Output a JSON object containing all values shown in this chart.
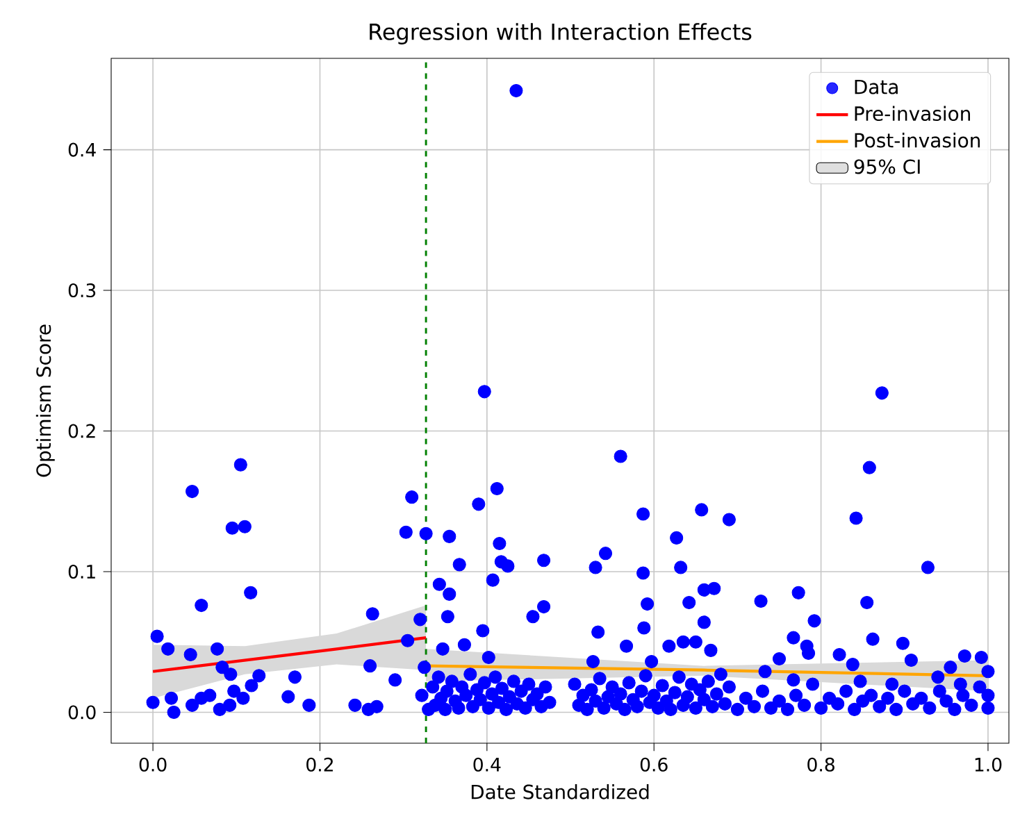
{
  "chart_data": {
    "type": "scatter",
    "title": "Regression with Interaction Effects",
    "xlabel": "Date Standardized",
    "ylabel": "Optimism Score",
    "xlim": [
      -0.05,
      1.025
    ],
    "ylim": [
      -0.022,
      0.465
    ],
    "xticks": [
      {
        "value": 0,
        "label": "0.0"
      },
      0.2,
      0.4,
      0.6,
      0.8,
      {
        "value": 1,
        "label": "1.0"
      }
    ],
    "yticks": [
      {
        "value": 0,
        "label": "0.0"
      },
      0.1,
      0.2,
      0.3,
      0.4
    ],
    "grid": true,
    "legend": "top right",
    "ref_lines": [
      {
        "axis": "x",
        "value": 0.327,
        "color": "#008000",
        "line_style": "dashed"
      }
    ],
    "series": [
      {
        "name": "Data",
        "type": "scatter",
        "marker": "circle",
        "color": "#0000ff",
        "x": [
          0.435,
          0.047,
          0.105,
          0.095,
          0.11,
          0.117,
          0.058,
          0.005,
          0.018,
          0.045,
          0.077,
          0.083,
          0.093,
          0.127,
          0.17,
          0.162,
          0.187,
          0.0,
          0.022,
          0.025,
          0.047,
          0.058,
          0.08,
          0.092,
          0.108,
          0.118,
          0.097,
          0.068,
          0.242,
          0.258,
          0.268,
          0.26,
          0.263,
          0.29,
          0.31,
          0.303,
          0.327,
          0.305,
          0.32,
          0.325,
          0.322,
          0.33,
          0.397,
          0.56,
          0.412,
          0.39,
          0.355,
          0.415,
          0.367,
          0.417,
          0.425,
          0.468,
          0.53,
          0.542,
          0.587,
          0.587,
          0.592,
          0.588,
          0.627,
          0.632,
          0.657,
          0.66,
          0.672,
          0.642,
          0.66,
          0.618,
          0.635,
          0.65,
          0.668,
          0.567,
          0.533,
          0.455,
          0.468,
          0.407,
          0.343,
          0.355,
          0.353,
          0.395,
          0.347,
          0.373,
          0.402,
          0.527,
          0.597,
          0.873,
          0.858,
          0.842,
          0.928,
          0.69,
          0.728,
          0.773,
          0.855,
          0.792,
          0.767,
          0.783,
          0.785,
          0.862,
          0.898,
          0.75,
          0.822,
          0.838,
          0.733,
          0.767,
          0.972,
          0.992,
          1.0,
          0.955,
          0.908,
          0.967,
          0.942,
          0.885,
          0.847,
          0.335,
          0.338,
          0.342,
          0.345,
          0.35,
          0.352,
          0.358,
          0.362,
          0.366,
          0.37,
          0.375,
          0.38,
          0.383,
          0.388,
          0.392,
          0.397,
          0.402,
          0.406,
          0.41,
          0.414,
          0.418,
          0.423,
          0.427,
          0.432,
          0.436,
          0.441,
          0.446,
          0.45,
          0.455,
          0.46,
          0.465,
          0.47,
          0.475,
          0.505,
          0.51,
          0.515,
          0.52,
          0.525,
          0.53,
          0.535,
          0.54,
          0.545,
          0.55,
          0.555,
          0.56,
          0.565,
          0.57,
          0.575,
          0.58,
          0.585,
          0.59,
          0.595,
          0.6,
          0.605,
          0.61,
          0.615,
          0.62,
          0.625,
          0.63,
          0.635,
          0.64,
          0.645,
          0.65,
          0.655,
          0.66,
          0.665,
          0.67,
          0.675,
          0.68,
          0.685,
          0.69,
          0.7,
          0.71,
          0.72,
          0.73,
          0.74,
          0.75,
          0.76,
          0.77,
          0.78,
          0.79,
          0.8,
          0.81,
          0.82,
          0.83,
          0.84,
          0.85,
          0.86,
          0.87,
          0.88,
          0.89,
          0.9,
          0.91,
          0.92,
          0.93,
          0.94,
          0.95,
          0.96,
          0.97,
          0.98,
          0.99,
          1.0,
          1.0
        ],
        "values": [
          0.442,
          0.157,
          0.176,
          0.131,
          0.132,
          0.085,
          0.076,
          0.054,
          0.045,
          0.041,
          0.045,
          0.032,
          0.027,
          0.026,
          0.025,
          0.011,
          0.005,
          0.007,
          0.01,
          0.0,
          0.005,
          0.01,
          0.002,
          0.005,
          0.01,
          0.019,
          0.015,
          0.012,
          0.005,
          0.002,
          0.004,
          0.033,
          0.07,
          0.023,
          0.153,
          0.128,
          0.127,
          0.051,
          0.066,
          0.032,
          0.012,
          0.002,
          0.228,
          0.182,
          0.159,
          0.148,
          0.125,
          0.12,
          0.105,
          0.107,
          0.104,
          0.108,
          0.103,
          0.113,
          0.141,
          0.099,
          0.077,
          0.06,
          0.124,
          0.103,
          0.144,
          0.087,
          0.088,
          0.078,
          0.064,
          0.047,
          0.05,
          0.05,
          0.044,
          0.047,
          0.057,
          0.068,
          0.075,
          0.094,
          0.091,
          0.084,
          0.068,
          0.058,
          0.045,
          0.048,
          0.039,
          0.036,
          0.036,
          0.227,
          0.174,
          0.138,
          0.103,
          0.137,
          0.079,
          0.085,
          0.078,
          0.065,
          0.053,
          0.047,
          0.042,
          0.052,
          0.049,
          0.038,
          0.041,
          0.034,
          0.029,
          0.023,
          0.04,
          0.039,
          0.029,
          0.032,
          0.037,
          0.02,
          0.015,
          0.02,
          0.022,
          0.018,
          0.005,
          0.025,
          0.01,
          0.002,
          0.015,
          0.022,
          0.008,
          0.003,
          0.018,
          0.012,
          0.027,
          0.004,
          0.016,
          0.009,
          0.021,
          0.003,
          0.013,
          0.025,
          0.007,
          0.017,
          0.002,
          0.011,
          0.022,
          0.006,
          0.015,
          0.003,
          0.02,
          0.009,
          0.013,
          0.004,
          0.018,
          0.007,
          0.02,
          0.005,
          0.012,
          0.002,
          0.016,
          0.008,
          0.024,
          0.003,
          0.011,
          0.018,
          0.006,
          0.013,
          0.002,
          0.021,
          0.009,
          0.004,
          0.015,
          0.026,
          0.007,
          0.012,
          0.003,
          0.019,
          0.008,
          0.002,
          0.014,
          0.025,
          0.005,
          0.011,
          0.02,
          0.003,
          0.016,
          0.009,
          0.022,
          0.004,
          0.013,
          0.027,
          0.006,
          0.018,
          0.002,
          0.01,
          0.004,
          0.015,
          0.003,
          0.008,
          0.002,
          0.012,
          0.005,
          0.02,
          0.003,
          0.01,
          0.006,
          0.015,
          0.002,
          0.008,
          0.012,
          0.004,
          0.01,
          0.002,
          0.015,
          0.006,
          0.01,
          0.003,
          0.025,
          0.008,
          0.002,
          0.012,
          0.005,
          0.018,
          0.003,
          0.012
        ]
      },
      {
        "name": "Pre-invasion",
        "type": "line",
        "marker": "none",
        "color": "#ff0000",
        "x": [
          0,
          0.11,
          0.22,
          0.327
        ],
        "values": [
          0.029,
          0.037,
          0.045,
          0.053
        ],
        "lower": [
          0.01,
          0.027,
          0.034,
          0.03
        ],
        "upper": [
          0.048,
          0.047,
          0.056,
          0.076
        ]
      },
      {
        "name": "Post-invasion",
        "type": "line",
        "marker": "none",
        "color": "#ffa500",
        "x": [
          0.327,
          0.66,
          1.0
        ],
        "values": [
          0.033,
          0.03,
          0.026
        ],
        "lower": [
          0.022,
          0.026,
          0.015
        ],
        "upper": [
          0.045,
          0.033,
          0.037
        ]
      },
      {
        "name": "95% CI",
        "type": "area",
        "color": "#d9d9d9"
      }
    ]
  }
}
